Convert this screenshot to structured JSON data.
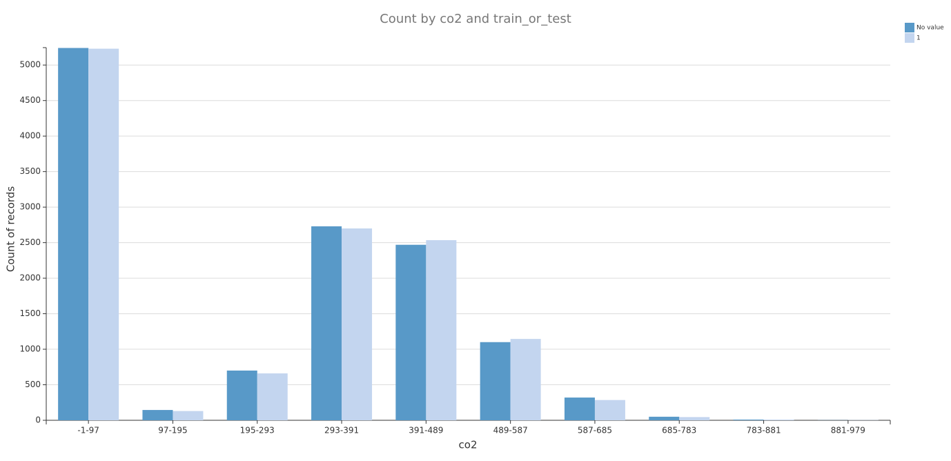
{
  "chart_data": {
    "type": "bar",
    "title": "Count by co2 and train_or_test",
    "x_label": "co2",
    "y_label": "Count of records",
    "categories": [
      "-1-97",
      "97-195",
      "195-293",
      "293-391",
      "391-489",
      "489-587",
      "587-685",
      "685-783",
      "783-881",
      "881-979"
    ],
    "series": [
      {
        "name": "No value",
        "color": "#5899c8",
        "values": [
          5240,
          145,
          700,
          2730,
          2470,
          1100,
          320,
          50,
          10,
          2
        ]
      },
      {
        "name": "1",
        "color": "#c3d5ef",
        "values": [
          5230,
          130,
          660,
          2700,
          2535,
          1145,
          285,
          45,
          10,
          3
        ]
      }
    ],
    "ylim": [
      0,
      5245
    ],
    "yticks": [
      0,
      500,
      1000,
      1500,
      2000,
      2500,
      3000,
      3500,
      4000,
      4500,
      5000
    ],
    "grid": true,
    "legend": "top-right"
  }
}
